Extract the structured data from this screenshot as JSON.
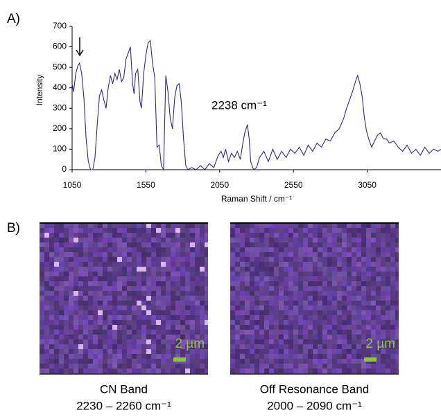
{
  "chart_data": {
    "type": "line",
    "x_label": "Raman Shift / cm⁻¹",
    "y_label": "Intensity",
    "annotation": "2238 cm⁻¹",
    "x": [
      1050,
      1060,
      1075,
      1090,
      1100,
      1115,
      1130,
      1145,
      1160,
      1175,
      1190,
      1205,
      1220,
      1235,
      1250,
      1265,
      1280,
      1295,
      1310,
      1325,
      1340,
      1355,
      1370,
      1385,
      1400,
      1415,
      1430,
      1445,
      1460,
      1470,
      1480,
      1495,
      1510,
      1520,
      1535,
      1550,
      1565,
      1580,
      1595,
      1610,
      1625,
      1640,
      1655,
      1670,
      1685,
      1700,
      1715,
      1730,
      1745,
      1760,
      1775,
      1790,
      1805,
      1820,
      1835,
      1860,
      1890,
      1920,
      1950,
      1980,
      2010,
      2040,
      2060,
      2075,
      2090,
      2110,
      2130,
      2150,
      2170,
      2190,
      2205,
      2220,
      2238,
      2250,
      2260,
      2280,
      2300,
      2320,
      2350,
      2380,
      2410,
      2440,
      2470,
      2500,
      2530,
      2560,
      2590,
      2620,
      2650,
      2680,
      2710,
      2740,
      2770,
      2800,
      2830,
      2860,
      2890,
      2910,
      2930,
      2950,
      2970,
      2985,
      3000,
      3015,
      3030,
      3045,
      3060,
      3080,
      3100,
      3120,
      3140,
      3160,
      3180,
      3200,
      3230,
      3260,
      3290,
      3320,
      3350,
      3380,
      3410,
      3440,
      3470,
      3500,
      3530,
      3550
    ],
    "series": [
      {
        "color": "#2b2b85",
        "values": [
          420,
          380,
          470,
          510,
          520,
          470,
          350,
          150,
          40,
          0,
          0,
          60,
          220,
          360,
          390,
          340,
          300,
          400,
          460,
          420,
          470,
          440,
          490,
          430,
          450,
          540,
          570,
          600,
          420,
          370,
          470,
          490,
          330,
          300,
          470,
          560,
          620,
          630,
          520,
          450,
          110,
          120,
          20,
          0,
          460,
          380,
          250,
          200,
          350,
          410,
          420,
          330,
          150,
          20,
          0,
          10,
          0,
          20,
          0,
          30,
          10,
          70,
          90,
          60,
          100,
          40,
          80,
          60,
          90,
          50,
          120,
          180,
          220,
          150,
          40,
          0,
          10,
          60,
          90,
          40,
          100,
          50,
          90,
          60,
          100,
          80,
          110,
          70,
          120,
          90,
          130,
          110,
          150,
          140,
          180,
          200,
          250,
          300,
          340,
          380,
          430,
          460,
          420,
          360,
          260,
          190,
          150,
          110,
          140,
          170,
          180,
          150,
          150,
          130,
          140,
          110,
          90,
          120,
          80,
          100,
          70,
          110,
          80,
          100,
          90,
          100
        ]
      }
    ],
    "xlim": [
      1050,
      3550
    ],
    "xticks": [
      1050,
      1550,
      2050,
      2550,
      3050
    ],
    "ylim": [
      0,
      700
    ],
    "yticks": [
      0,
      100,
      200,
      300,
      400,
      500,
      600,
      700
    ]
  },
  "panel_labels": [
    "A)",
    "B)"
  ],
  "images": [
    {
      "scale_bar": "2 µm",
      "caption": "CN Band",
      "range": "2230 – 2260 cm⁻¹"
    },
    {
      "scale_bar": "2 µm",
      "caption": "Off Resonance Band",
      "range": "2000 – 2090 cm⁻¹"
    }
  ]
}
